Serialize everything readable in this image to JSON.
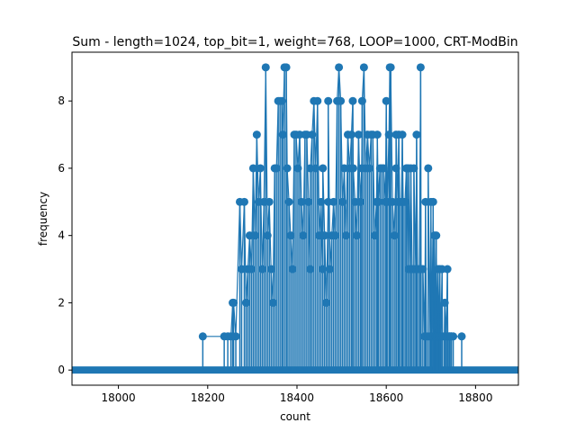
{
  "chart_data": {
    "type": "scatter",
    "style": "stem",
    "title": "Sum - length=1024, top_bit=1, weight=768, LOOP=1000, CRT-ModBin",
    "xlabel": "count",
    "ylabel": "frequency",
    "xlim": [
      17896,
      18896
    ],
    "ylim": [
      -0.45,
      9.45
    ],
    "xticks": [
      18000,
      18200,
      18400,
      18600,
      18800
    ],
    "yticks": [
      0,
      2,
      4,
      6,
      8
    ],
    "color": "#1f77b4",
    "grid": false,
    "baseline_zero": {
      "from": 17896,
      "to": 18896
    },
    "points": [
      [
        18189,
        1
      ],
      [
        18237,
        1
      ],
      [
        18245,
        1
      ],
      [
        18252,
        1
      ],
      [
        18256,
        2
      ],
      [
        18258,
        2
      ],
      [
        18263,
        1
      ],
      [
        18272,
        5
      ],
      [
        18276,
        3
      ],
      [
        18282,
        5
      ],
      [
        18286,
        2
      ],
      [
        18290,
        3
      ],
      [
        18294,
        4
      ],
      [
        18298,
        3
      ],
      [
        18302,
        6
      ],
      [
        18306,
        4
      ],
      [
        18310,
        7
      ],
      [
        18314,
        5
      ],
      [
        18318,
        6
      ],
      [
        18322,
        3
      ],
      [
        18326,
        5
      ],
      [
        18330,
        9
      ],
      [
        18334,
        4
      ],
      [
        18338,
        5
      ],
      [
        18342,
        3
      ],
      [
        18346,
        2
      ],
      [
        18350,
        6
      ],
      [
        18354,
        6
      ],
      [
        18358,
        8
      ],
      [
        18362,
        8
      ],
      [
        18366,
        8
      ],
      [
        18368,
        7
      ],
      [
        18372,
        9
      ],
      [
        18376,
        9
      ],
      [
        18378,
        6
      ],
      [
        18382,
        5
      ],
      [
        18386,
        4
      ],
      [
        18390,
        3
      ],
      [
        18394,
        7
      ],
      [
        18398,
        7
      ],
      [
        18402,
        6
      ],
      [
        18406,
        7
      ],
      [
        18410,
        5
      ],
      [
        18414,
        4
      ],
      [
        18418,
        7
      ],
      [
        18422,
        7
      ],
      [
        18426,
        5
      ],
      [
        18430,
        3
      ],
      [
        18434,
        7
      ],
      [
        18438,
        8
      ],
      [
        18442,
        6
      ],
      [
        18446,
        8
      ],
      [
        18450,
        4
      ],
      [
        18454,
        5
      ],
      [
        18458,
        3
      ],
      [
        18462,
        4
      ],
      [
        18466,
        2
      ],
      [
        18470,
        5
      ],
      [
        18474,
        3
      ],
      [
        18478,
        4
      ],
      [
        18482,
        5
      ],
      [
        18486,
        4
      ],
      [
        18490,
        8
      ],
      [
        18494,
        9
      ],
      [
        18498,
        8
      ],
      [
        18502,
        5
      ],
      [
        18506,
        6
      ],
      [
        18510,
        4
      ],
      [
        18514,
        7
      ],
      [
        18518,
        6
      ],
      [
        18522,
        7
      ],
      [
        18526,
        6
      ],
      [
        18530,
        5
      ],
      [
        18534,
        4
      ],
      [
        18538,
        7
      ],
      [
        18542,
        5
      ],
      [
        18546,
        8
      ],
      [
        18550,
        9
      ],
      [
        18554,
        6
      ],
      [
        18558,
        7
      ],
      [
        18562,
        6
      ],
      [
        18566,
        7
      ],
      [
        18570,
        7
      ],
      [
        18574,
        4
      ],
      [
        18578,
        5
      ],
      [
        18582,
        5
      ],
      [
        18586,
        6
      ],
      [
        18590,
        6
      ],
      [
        18594,
        6
      ],
      [
        18598,
        5
      ],
      [
        18602,
        5
      ],
      [
        18606,
        7
      ],
      [
        18610,
        9
      ],
      [
        18614,
        5
      ],
      [
        18618,
        4
      ],
      [
        18622,
        6
      ],
      [
        18626,
        5
      ],
      [
        18630,
        5
      ],
      [
        18634,
        5
      ],
      [
        18638,
        5
      ],
      [
        18642,
        5
      ],
      [
        18646,
        6
      ],
      [
        18650,
        3
      ],
      [
        18654,
        3
      ],
      [
        18658,
        3
      ],
      [
        18662,
        3
      ],
      [
        18666,
        3
      ],
      [
        18670,
        3
      ],
      [
        18674,
        3
      ],
      [
        18678,
        3
      ],
      [
        18682,
        3
      ],
      [
        18686,
        1
      ],
      [
        18690,
        1
      ],
      [
        18694,
        1
      ],
      [
        18698,
        1
      ],
      [
        18702,
        1
      ],
      [
        18706,
        1
      ],
      [
        18710,
        1
      ],
      [
        18714,
        1
      ],
      [
        18718,
        1
      ],
      [
        18722,
        1
      ],
      [
        18726,
        1
      ],
      [
        18730,
        1
      ],
      [
        18734,
        1
      ],
      [
        18738,
        1
      ],
      [
        18742,
        1
      ],
      [
        18746,
        1
      ],
      [
        18750,
        1
      ],
      [
        18769,
        1
      ],
      [
        18430,
        6
      ],
      [
        18458,
        6
      ],
      [
        18470,
        8
      ],
      [
        18525,
        8
      ],
      [
        18545,
        6
      ],
      [
        18580,
        7
      ],
      [
        18600,
        8
      ],
      [
        18608,
        9
      ],
      [
        18622,
        7
      ],
      [
        18628,
        7
      ],
      [
        18636,
        7
      ],
      [
        18645,
        6
      ],
      [
        18650,
        6
      ],
      [
        18655,
        6
      ],
      [
        18662,
        6
      ],
      [
        18668,
        7
      ],
      [
        18677,
        9
      ],
      [
        18688,
        5
      ],
      [
        18694,
        6
      ],
      [
        18700,
        5
      ],
      [
        18705,
        5
      ],
      [
        18708,
        4
      ],
      [
        18712,
        4
      ],
      [
        18716,
        3
      ],
      [
        18720,
        3
      ],
      [
        18725,
        3
      ],
      [
        18731,
        2
      ],
      [
        18737,
        3
      ],
      [
        18741,
        1
      ],
      [
        18745,
        1
      ]
    ]
  }
}
